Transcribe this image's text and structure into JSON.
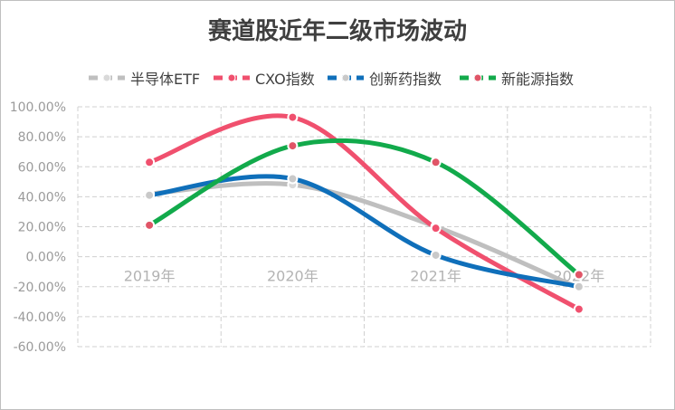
{
  "chart_data": {
    "type": "line",
    "title": "赛道股近年二级市场波动",
    "xlabel": "",
    "ylabel": "",
    "categories": [
      "2019年",
      "2020年",
      "2021年",
      "2022年"
    ],
    "ylim": [
      -60,
      100
    ],
    "yticks": [
      "100.00%",
      "80.00%",
      "60.00%",
      "40.00%",
      "20.00%",
      "0.00%",
      "-20.00%",
      "-40.00%",
      "-60.00%"
    ],
    "ytick_values": [
      100,
      80,
      60,
      40,
      20,
      0,
      -20,
      -40,
      -60
    ],
    "grid": true,
    "legend_position": "top",
    "smooth": true,
    "series": [
      {
        "name": "半导体ETF",
        "values": [
          42,
          48,
          20,
          -21
        ],
        "color": "#bfbfbf",
        "marker_color": "#d9d9d9"
      },
      {
        "name": "CXO指数",
        "values": [
          63,
          93,
          19,
          -35
        ],
        "color": "#f0506e",
        "marker_color": "#f0506e"
      },
      {
        "name": "创新药指数",
        "values": [
          41,
          52,
          1,
          -20
        ],
        "color": "#0f6fba",
        "marker_color": "#c9c9c9"
      },
      {
        "name": "新能源指数",
        "values": [
          21,
          74,
          63,
          -12
        ],
        "color": "#12aa4b",
        "marker_color": "#e05567"
      }
    ]
  }
}
